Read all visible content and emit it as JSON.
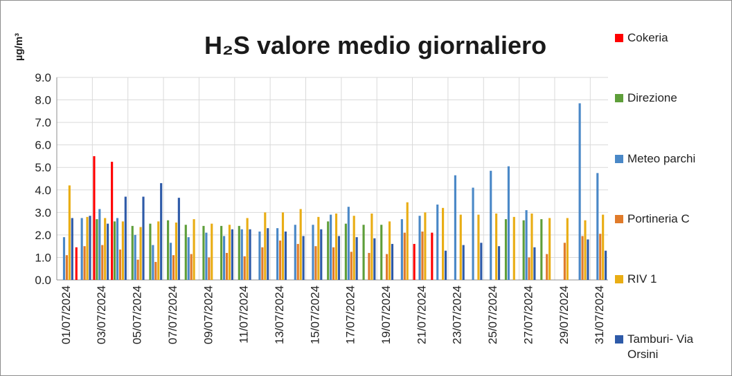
{
  "chart_data": {
    "type": "bar",
    "title": "H₂S valore medio giornaliero",
    "y_label": "µg/m³",
    "categories": [
      "01/07/2024",
      null,
      "03/07/2024",
      null,
      "05/07/2024",
      null,
      "07/07/2024",
      null,
      "09/07/2024",
      null,
      "11/07/2024",
      null,
      "13/07/2024",
      null,
      "15/07/2024",
      null,
      "17/07/2024",
      null,
      "19/07/2024",
      null,
      "21/07/2024",
      null,
      "23/07/2024",
      null,
      "25/07/2024",
      null,
      "27/07/2024",
      null,
      "29/07/2024",
      null,
      "31/07/2024"
    ],
    "series": [
      {
        "name": "Cokeria",
        "color": "#ff0000",
        "values": [
          null,
          1.45,
          5.5,
          5.25,
          null,
          null,
          null,
          null,
          null,
          null,
          null,
          null,
          null,
          null,
          null,
          null,
          null,
          null,
          null,
          null,
          1.6,
          2.1,
          null,
          null,
          null,
          null,
          null,
          null,
          null,
          null,
          null
        ]
      },
      {
        "name": "Direzione",
        "color": "#5e9e3a",
        "values": [
          null,
          null,
          2.7,
          2.6,
          2.4,
          2.5,
          2.65,
          2.45,
          2.4,
          2.4,
          2.4,
          null,
          null,
          null,
          null,
          2.6,
          2.5,
          2.45,
          2.45,
          null,
          null,
          null,
          null,
          null,
          null,
          2.7,
          2.65,
          2.7,
          null,
          null,
          null
        ]
      },
      {
        "name": "Meteo parchi",
        "color": "#4a88c7",
        "values": [
          1.9,
          2.75,
          3.15,
          2.75,
          2.0,
          1.55,
          1.65,
          1.9,
          2.1,
          1.95,
          2.25,
          2.15,
          2.3,
          2.45,
          2.45,
          2.9,
          3.25,
          null,
          null,
          2.7,
          2.85,
          3.35,
          4.65,
          4.1,
          4.85,
          5.05,
          3.1,
          null,
          null,
          7.85,
          4.75
        ]
      },
      {
        "name": "Portineria C",
        "color": "#e07b2a",
        "values": [
          1.1,
          1.5,
          1.55,
          1.35,
          0.9,
          0.8,
          1.1,
          1.15,
          1.0,
          1.2,
          1.05,
          1.45,
          1.75,
          1.6,
          1.5,
          1.45,
          1.25,
          1.2,
          1.15,
          2.1,
          2.15,
          null,
          null,
          null,
          null,
          null,
          1.0,
          1.15,
          1.65,
          1.95,
          2.05
        ]
      },
      {
        "name": "RIV 1",
        "color": "#e9ad14",
        "values": [
          4.2,
          2.8,
          2.75,
          2.6,
          2.35,
          2.6,
          2.55,
          2.7,
          2.5,
          2.45,
          2.75,
          3.0,
          3.0,
          3.15,
          2.8,
          2.95,
          2.85,
          2.95,
          2.6,
          3.45,
          3.0,
          3.2,
          2.9,
          2.9,
          2.95,
          2.8,
          2.95,
          2.75,
          2.75,
          2.65,
          2.9
        ]
      },
      {
        "name": "Tamburi- Via Orsini",
        "color": "#2e5aa8",
        "values": [
          2.75,
          2.85,
          2.5,
          3.7,
          3.7,
          4.3,
          3.65,
          null,
          null,
          2.25,
          2.25,
          2.3,
          2.15,
          1.95,
          2.25,
          1.95,
          1.9,
          1.85,
          1.6,
          null,
          null,
          1.3,
          1.55,
          1.65,
          1.5,
          null,
          1.45,
          null,
          null,
          1.8,
          1.3
        ]
      }
    ],
    "ylim": [
      0,
      9
    ],
    "yticks": [
      {
        "value": 0,
        "label": "0.0"
      },
      {
        "value": 1,
        "label": "1.0"
      },
      {
        "value": 2,
        "label": "2.0"
      },
      {
        "value": 3,
        "label": "3.0"
      },
      {
        "value": 4,
        "label": "4.0"
      },
      {
        "value": 5,
        "label": "5.0"
      },
      {
        "value": 6,
        "label": "6.0"
      },
      {
        "value": 7,
        "label": "7.0"
      },
      {
        "value": 8,
        "label": "8.0"
      },
      {
        "value": 9,
        "label": "9.0"
      }
    ],
    "grid": true,
    "legend": "right"
  }
}
